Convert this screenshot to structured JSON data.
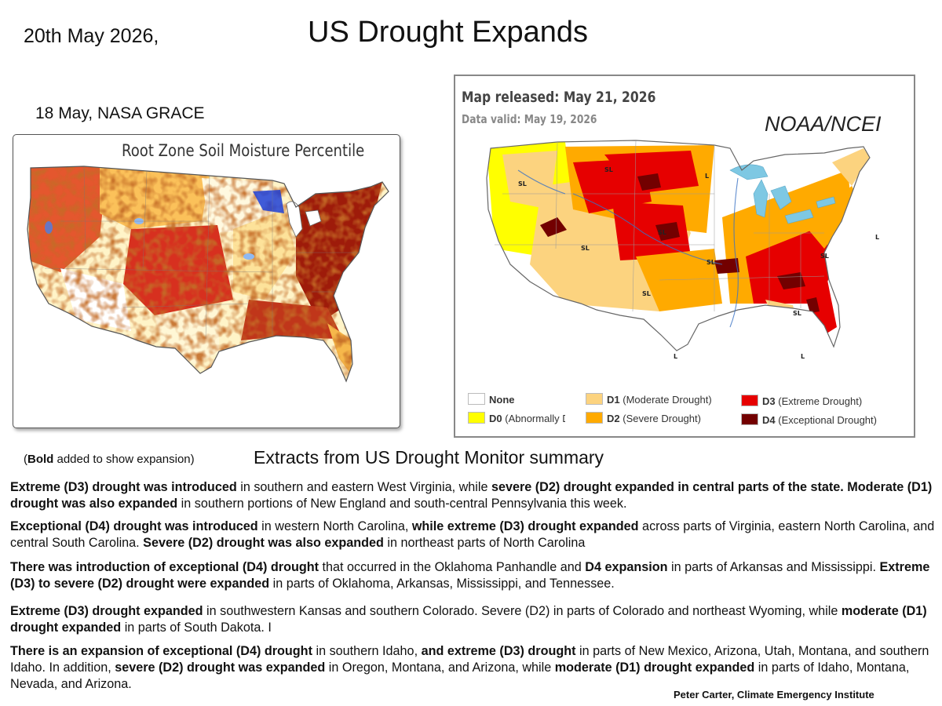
{
  "header": {
    "date": "20th May 2026,",
    "title": "US Drought Expands"
  },
  "left_panel": {
    "caption": "18 May,  NASA GRACE",
    "map_title": "Root Zone Soil Moisture Percentile"
  },
  "right_panel": {
    "released": "Map released: May 21, 2026",
    "valid": "Data valid: May 19, 2026",
    "source": "NOAA/NCEI",
    "map_labels": [
      "SL",
      "SL",
      "SL",
      "SL",
      "SL",
      "SL",
      "SL",
      "SL",
      "L",
      "L",
      "L",
      "L"
    ],
    "legend": [
      {
        "code": "",
        "text": "None",
        "color": "#ffffff"
      },
      {
        "code": "D0",
        "text": " (Abnormally Dry)",
        "color": "#ffff00"
      },
      {
        "code": "D1",
        "text": " (Moderate Drought)",
        "color": "#fcd37f"
      },
      {
        "code": "D2",
        "text": " (Severe Drought)",
        "color": "#ffaa00"
      },
      {
        "code": "D3",
        "text": " (Extreme Drought)",
        "color": "#e60000"
      },
      {
        "code": "D4",
        "text": " (Exceptional Drought)",
        "color": "#730000"
      }
    ]
  },
  "extracts": {
    "note_bold": "Bold",
    "note_rest": " added to show expansion)",
    "note_open": "(",
    "title": "Extracts from US Drought Monitor summary",
    "paragraphs": [
      [
        {
          "t": "Extreme (D3) drought was introduced",
          "b": true
        },
        {
          "t": " in southern and eastern West Virginia, while ",
          "b": false
        },
        {
          "t": "severe (D2) drought expanded in central parts of the state. Moderate (D1) drought was also expanded",
          "b": true
        },
        {
          "t": " in southern portions of New England and south-central Pennsylvania this week.",
          "b": false
        }
      ],
      [
        {
          "t": "Exceptional (D4) drought was introduced",
          "b": true
        },
        {
          "t": " in western North Carolina, ",
          "b": false
        },
        {
          "t": "while extreme (D3) drought expanded",
          "b": true
        },
        {
          "t": " across parts of Virginia, eastern North Carolina, and central South Carolina. ",
          "b": false
        },
        {
          "t": "Severe (D2) drought was also expanded",
          "b": true
        },
        {
          "t": " in northeast parts of North Carolina",
          "b": false
        }
      ],
      [
        {
          "t": "There was introduction of exceptional (D4) drought",
          "b": true
        },
        {
          "t": " that occurred in the Oklahoma Panhandle and ",
          "b": false
        },
        {
          "t": "D4 expansion",
          "b": true
        },
        {
          "t": " in parts of Arkansas and Mississippi. ",
          "b": false
        },
        {
          "t": "Extreme (D3) to severe (D2) drought were expanded",
          "b": true
        },
        {
          "t": " in parts of Oklahoma, Arkansas, Mississippi, and Tennessee.",
          "b": false
        }
      ],
      [
        {
          "t": "Extreme (D3) drought expanded",
          "b": true
        },
        {
          "t": " in southwestern Kansas and southern Colorado. Severe (D2) in parts of Colorado and northeast Wyoming, while ",
          "b": false
        },
        {
          "t": "moderate (D1) drought expanded",
          "b": true
        },
        {
          "t": " in parts of South Dakota. I",
          "b": false
        }
      ],
      [
        {
          "t": "There is an expansion of exceptional (D4) drought",
          "b": true
        },
        {
          "t": " in southern Idaho, ",
          "b": false
        },
        {
          "t": "and extreme (D3) drought",
          "b": true
        },
        {
          "t": " in parts of New Mexico, Arizona, Utah, Montana, and southern Idaho. In addition, ",
          "b": false
        },
        {
          "t": "severe (D2) drought was expanded",
          "b": true
        },
        {
          "t": " in Oregon, Montana, and Arizona, while ",
          "b": false
        },
        {
          "t": "moderate (D1) drought expanded",
          "b": true
        },
        {
          "t": " in parts of Idaho, Montana, Nevada, and Arizona.",
          "b": false
        }
      ]
    ]
  },
  "credit": "Peter Carter, Climate Emergency Institute"
}
